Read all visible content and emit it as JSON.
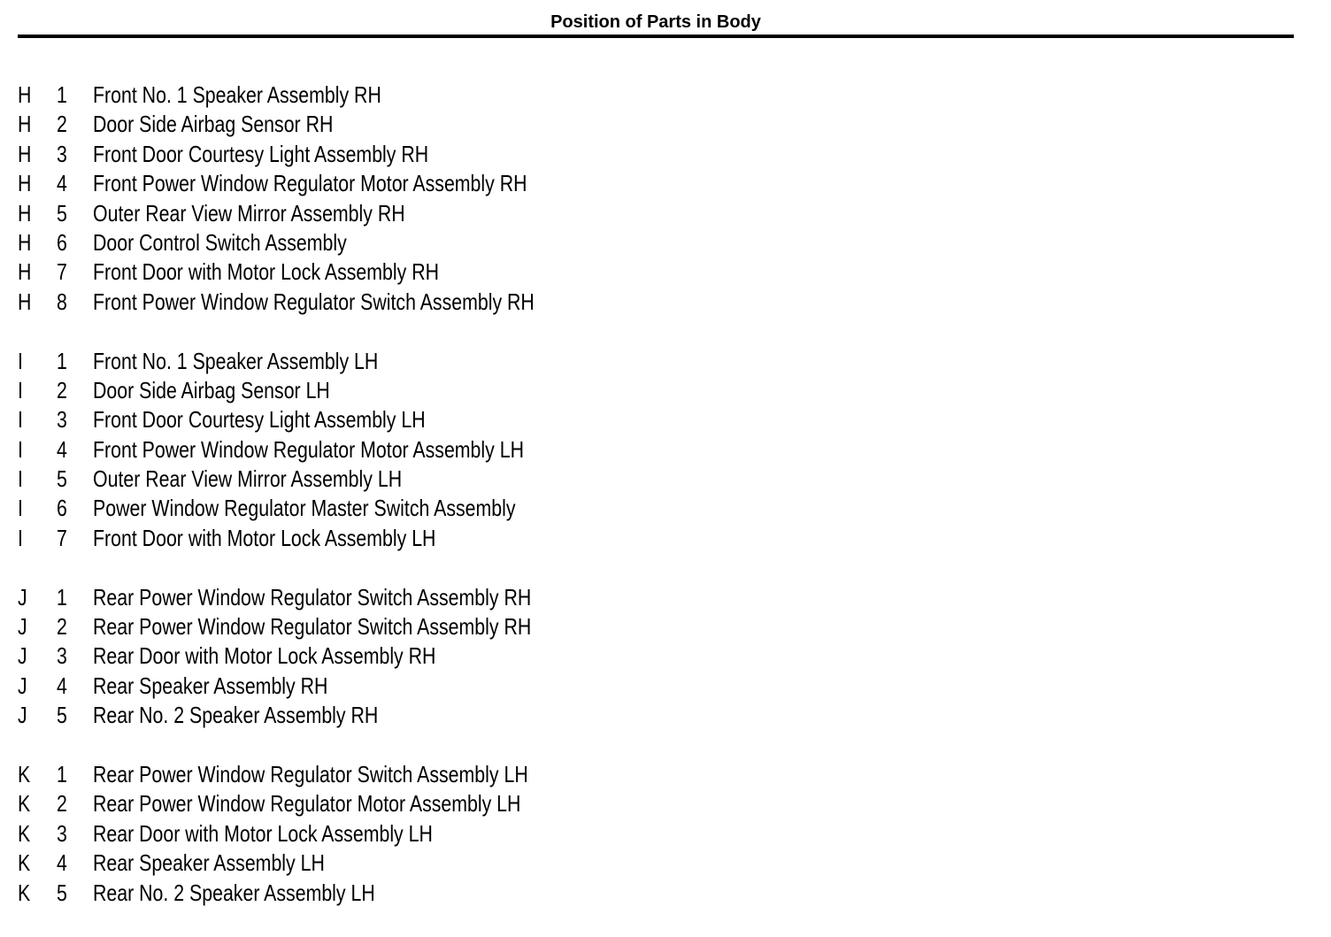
{
  "title": "Position of Parts in Body",
  "groups": [
    {
      "letter": "H",
      "items": [
        {
          "no": "1",
          "name": "Front No. 1 Speaker Assembly RH"
        },
        {
          "no": "2",
          "name": "Door Side Airbag Sensor RH"
        },
        {
          "no": "3",
          "name": "Front Door Courtesy Light Assembly RH"
        },
        {
          "no": "4",
          "name": "Front Power Window Regulator Motor Assembly RH"
        },
        {
          "no": "5",
          "name": "Outer Rear View Mirror Assembly RH"
        },
        {
          "no": "6",
          "name": "Door Control Switch Assembly"
        },
        {
          "no": "7",
          "name": "Front Door with Motor Lock Assembly RH"
        },
        {
          "no": "8",
          "name": "Front Power Window Regulator Switch Assembly RH"
        }
      ]
    },
    {
      "letter": "I",
      "items": [
        {
          "no": "1",
          "name": "Front No. 1 Speaker Assembly LH"
        },
        {
          "no": "2",
          "name": "Door Side Airbag Sensor LH"
        },
        {
          "no": "3",
          "name": "Front Door Courtesy Light Assembly LH"
        },
        {
          "no": "4",
          "name": "Front Power Window Regulator Motor Assembly LH"
        },
        {
          "no": "5",
          "name": "Outer Rear View Mirror Assembly LH"
        },
        {
          "no": "6",
          "name": "Power Window Regulator Master Switch Assembly"
        },
        {
          "no": "7",
          "name": "Front Door with Motor Lock Assembly LH"
        }
      ]
    },
    {
      "letter": "J",
      "items": [
        {
          "no": "1",
          "name": "Rear Power Window Regulator Switch Assembly RH"
        },
        {
          "no": "2",
          "name": "Rear Power Window Regulator Switch Assembly RH"
        },
        {
          "no": "3",
          "name": "Rear Door with Motor Lock Assembly RH"
        },
        {
          "no": "4",
          "name": "Rear Speaker Assembly RH"
        },
        {
          "no": "5",
          "name": "Rear No. 2 Speaker Assembly RH"
        }
      ]
    },
    {
      "letter": "K",
      "items": [
        {
          "no": "1",
          "name": "Rear Power Window Regulator Switch Assembly LH"
        },
        {
          "no": "2",
          "name": "Rear Power Window Regulator Motor Assembly LH"
        },
        {
          "no": "3",
          "name": "Rear Door with Motor Lock Assembly LH"
        },
        {
          "no": "4",
          "name": "Rear Speaker Assembly LH"
        },
        {
          "no": "5",
          "name": "Rear No. 2 Speaker Assembly LH"
        }
      ]
    }
  ]
}
